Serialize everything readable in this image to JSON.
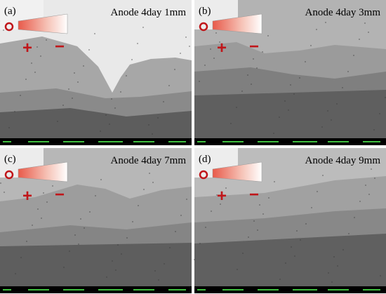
{
  "panels": [
    {
      "label": "(a)",
      "title": "Anode  4day 1mm",
      "plus": "+",
      "minus": "−"
    },
    {
      "label": "(b)",
      "title": "Anode  4day 3mm",
      "plus": "+",
      "minus": "−"
    },
    {
      "label": "(c)",
      "title": "Anode  4day 7mm",
      "plus": "+",
      "minus": "−"
    },
    {
      "label": "(d)",
      "title": "Anode  4day 9mm",
      "plus": "+",
      "minus": "−"
    }
  ]
}
